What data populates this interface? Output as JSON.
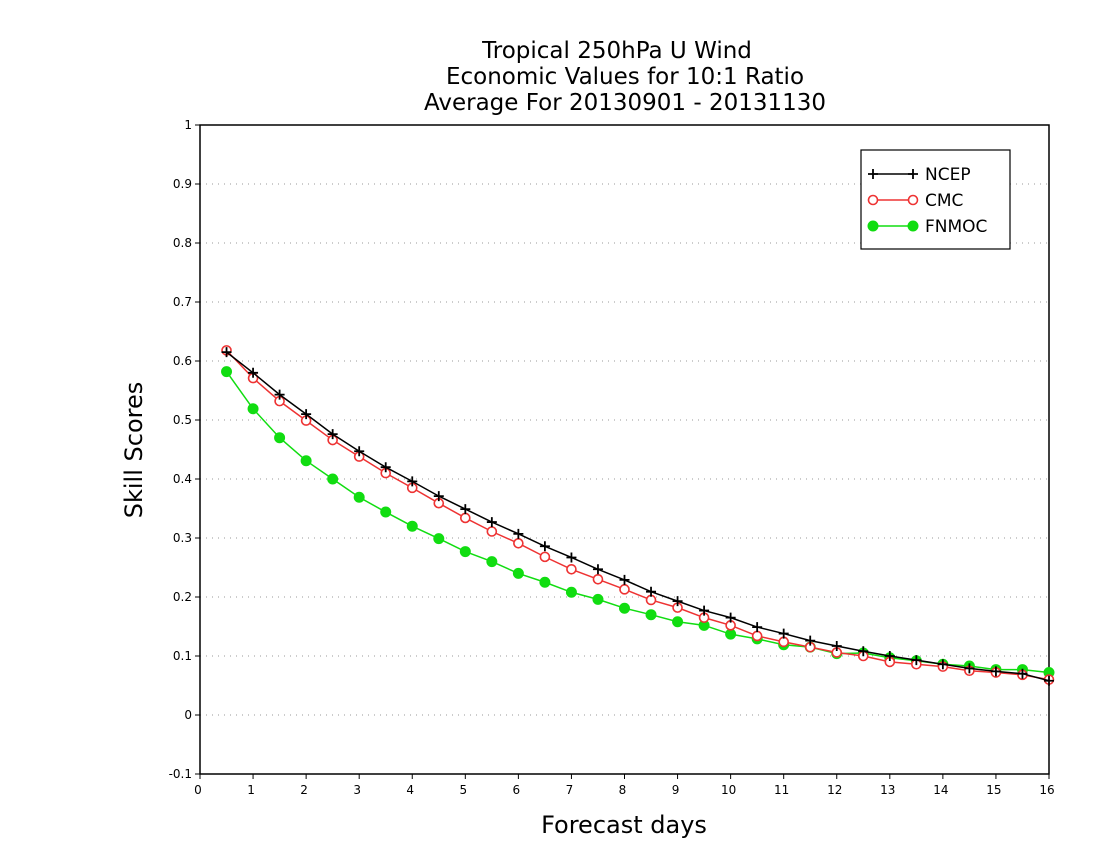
{
  "chart_data": {
    "type": "line",
    "title": [
      "Tropical 250hPa U Wind",
      "Economic Values for 10:1 Ratio",
      "Average For 20130901 - 20131130"
    ],
    "xlabel": "Forecast days",
    "ylabel": "Skill Scores",
    "xlim": [
      0,
      16
    ],
    "ylim": [
      -0.1,
      1
    ],
    "xticks": [
      0,
      1,
      2,
      3,
      4,
      5,
      6,
      7,
      8,
      9,
      10,
      11,
      12,
      13,
      14,
      15,
      16
    ],
    "yticks": [
      -0.1,
      0,
      0.1,
      0.2,
      0.3,
      0.4,
      0.5,
      0.6,
      0.7,
      0.8,
      0.9,
      1
    ],
    "ytick_labels": [
      "-0.1",
      "0",
      "0.1",
      "0.2",
      "0.3",
      "0.4",
      "0.5",
      "0.6",
      "0.7",
      "0.8",
      "0.9",
      "1"
    ],
    "grid": "horizontal dotted",
    "legend_position": "top-right",
    "x": [
      0.5,
      1,
      1.5,
      2,
      2.5,
      3,
      3.5,
      4,
      4.5,
      5,
      5.5,
      6,
      6.5,
      7,
      7.5,
      8,
      8.5,
      9,
      9.5,
      10,
      10.5,
      11,
      11.5,
      12,
      12.5,
      13,
      13.5,
      14,
      14.5,
      15,
      15.5,
      16
    ],
    "series": [
      {
        "name": "NCEP",
        "color": "#000000",
        "marker": "plus",
        "values": [
          0.615,
          0.58,
          0.543,
          0.51,
          0.476,
          0.447,
          0.42,
          0.396,
          0.371,
          0.349,
          0.327,
          0.307,
          0.286,
          0.267,
          0.247,
          0.229,
          0.209,
          0.193,
          0.177,
          0.165,
          0.149,
          0.138,
          0.126,
          0.117,
          0.108,
          0.1,
          0.093,
          0.086,
          0.079,
          0.074,
          0.07,
          0.058
        ]
      },
      {
        "name": "CMC",
        "color": "#ee3333",
        "marker": "open-circle",
        "values": [
          0.618,
          0.571,
          0.532,
          0.499,
          0.466,
          0.438,
          0.41,
          0.385,
          0.359,
          0.334,
          0.311,
          0.291,
          0.268,
          0.247,
          0.23,
          0.213,
          0.195,
          0.182,
          0.165,
          0.152,
          0.134,
          0.124,
          0.115,
          0.106,
          0.1,
          0.09,
          0.086,
          0.082,
          0.075,
          0.072,
          0.068,
          0.06
        ]
      },
      {
        "name": "FNMOC",
        "color": "#11dd11",
        "marker": "filled-circle",
        "values": [
          0.582,
          0.519,
          0.47,
          0.431,
          0.4,
          0.369,
          0.344,
          0.32,
          0.299,
          0.277,
          0.26,
          0.24,
          0.225,
          0.208,
          0.196,
          0.181,
          0.17,
          0.158,
          0.152,
          0.137,
          0.129,
          0.119,
          0.115,
          0.104,
          0.105,
          0.097,
          0.092,
          0.086,
          0.083,
          0.077,
          0.077,
          0.072
        ]
      }
    ]
  }
}
